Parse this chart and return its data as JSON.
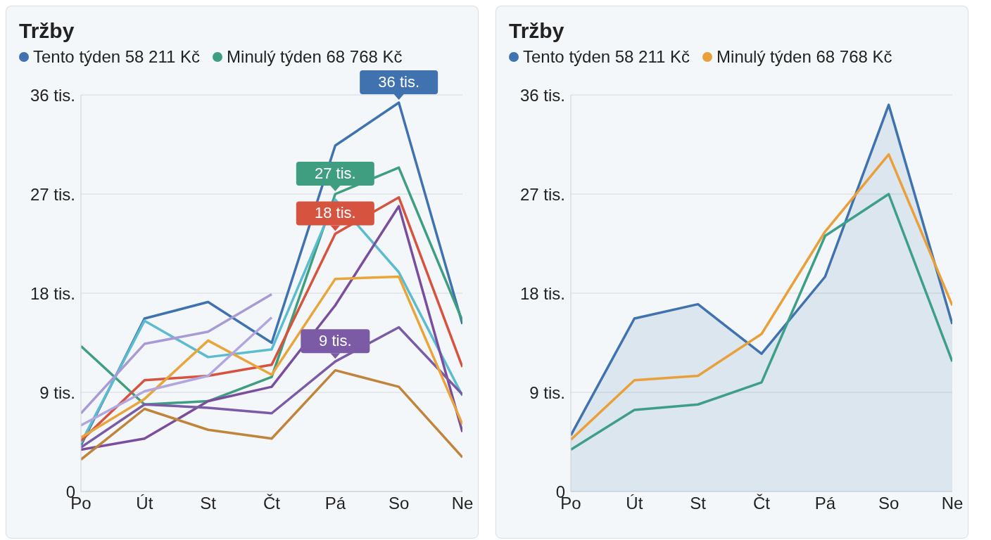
{
  "chart_data": [
    {
      "type": "line",
      "title": "Tržby",
      "legend": "top left",
      "grid": "y",
      "categories": [
        "Po",
        "Út",
        "St",
        "Čt",
        "Pá",
        "So",
        "Ne"
      ],
      "ylim": [
        0,
        36
      ],
      "yticks": [
        0,
        {
          "value": 9,
          "label": "9 tis."
        },
        {
          "value": 18,
          "label": "18 tis."
        },
        {
          "value": 27,
          "label": "27 tis."
        },
        {
          "value": 36,
          "label": "36 tis."
        }
      ],
      "series": [
        {
          "name": "Tento týden 58 211 Kč",
          "color": "#3f72af",
          "values": [
            4.2,
            15.7,
            17.2,
            13.5,
            31.4,
            35.3,
            15.2
          ]
        },
        {
          "name": "Minulý týden 68 768 Kč",
          "color": "#3f9e7f",
          "values": [
            13.2,
            7.9,
            8.2,
            10.4,
            27.0,
            29.4,
            15.5
          ]
        },
        {
          "color": "#5bbcd0",
          "values": [
            4.4,
            15.5,
            12.2,
            12.9,
            26.5,
            19.9,
            8.7
          ]
        },
        {
          "color": "#d6533f",
          "values": [
            4.6,
            10.1,
            10.5,
            11.5,
            23.4,
            26.7,
            11.3
          ]
        },
        {
          "color": "#7a4e9c",
          "values": [
            3.8,
            4.8,
            8.2,
            9.5,
            16.9,
            25.9,
            5.4
          ]
        },
        {
          "color": "#7b5aa6",
          "values": [
            4.0,
            7.9,
            7.6,
            7.1,
            11.8,
            14.9,
            8.8
          ]
        },
        {
          "color": "#e9a43b",
          "values": [
            4.9,
            8.4,
            13.7,
            10.6,
            19.3,
            19.5,
            6.1
          ]
        },
        {
          "color": "#a99ad6",
          "values": [
            7.1,
            13.4,
            14.5,
            17.9,
            null,
            null,
            null
          ]
        },
        {
          "color": "#b3a6de",
          "values": [
            6.0,
            9.1,
            10.5,
            15.8,
            null,
            null,
            null
          ]
        },
        {
          "color": "#c0843a",
          "values": [
            2.9,
            7.5,
            5.6,
            4.8,
            11.0,
            9.5,
            3.1
          ]
        }
      ],
      "annotations": [
        {
          "text": "36 tis.",
          "x": "So",
          "y": 35.3
        },
        {
          "text": "27 tis.",
          "x": "Pá",
          "y": 27.0
        },
        {
          "text": "18 tis.",
          "x": "Pá",
          "y": 23.4
        },
        {
          "text": "9 tis.",
          "x": "Pá",
          "y": 11.8
        }
      ]
    },
    {
      "type": "line",
      "title": "Tržby",
      "legend": "top left",
      "grid": "y",
      "categories": [
        "Po",
        "Út",
        "St",
        "Čt",
        "Pá",
        "So",
        "Ne"
      ],
      "ylim": [
        0,
        36
      ],
      "yticks": [
        0,
        {
          "value": 9,
          "label": "9 tis."
        },
        {
          "value": 18,
          "label": "18 tis."
        },
        {
          "value": 27,
          "label": "27 tis."
        },
        {
          "value": 36,
          "label": "36 tis."
        }
      ],
      "series": [
        {
          "name": "Tento týden 58 211 Kč",
          "type": "area",
          "color": "#3f72af",
          "values": [
            5.1,
            15.7,
            17.0,
            12.5,
            19.5,
            35.1,
            15.2
          ]
        },
        {
          "name": "Minulý týden 68 768 Kč",
          "color": "#e9a03b",
          "values": [
            4.7,
            10.1,
            10.5,
            14.3,
            23.6,
            30.6,
            16.9
          ]
        },
        {
          "color": "#3f9e8a",
          "values": [
            3.8,
            7.4,
            7.9,
            9.9,
            23.2,
            27.0,
            11.8
          ]
        }
      ]
    }
  ]
}
